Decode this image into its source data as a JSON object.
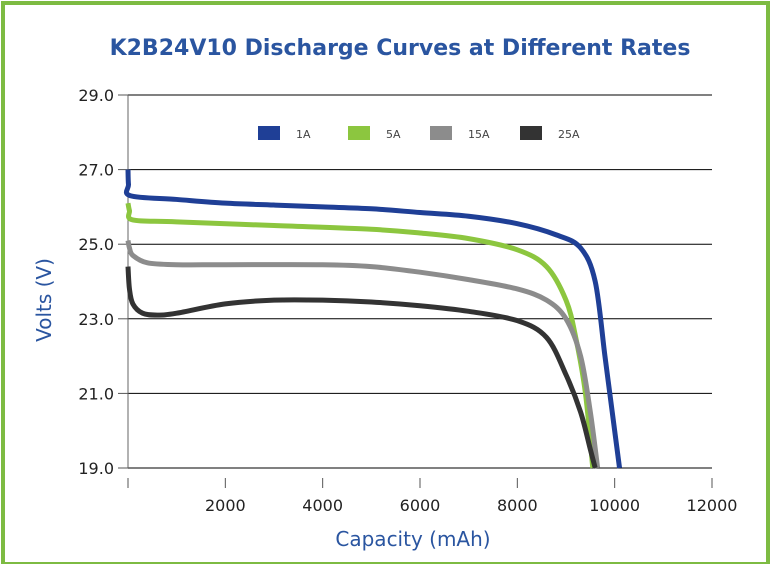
{
  "chart_data": {
    "type": "line",
    "title": "K2B24V10 Discharge Curves at Different Rates",
    "xlabel": "Capacity (mAh)",
    "ylabel": "Volts (V)",
    "xlim": [
      0,
      12000
    ],
    "ylim": [
      19,
      29
    ],
    "x_ticks": [
      "2000",
      "4000",
      "6000",
      "8000",
      "10000",
      "12000"
    ],
    "y_ticks": [
      "19.0",
      "21.0",
      "23.0",
      "25.0",
      "27.0",
      "29.0"
    ],
    "grid": true,
    "legend_position": "top",
    "series": [
      {
        "name": "1A",
        "color": "#1f3f96",
        "points": [
          [
            0,
            27.0
          ],
          [
            10,
            26.6
          ],
          [
            50,
            26.3
          ],
          [
            1000,
            26.2
          ],
          [
            2000,
            26.1
          ],
          [
            3000,
            26.05
          ],
          [
            4000,
            26.0
          ],
          [
            5000,
            25.95
          ],
          [
            6000,
            25.85
          ],
          [
            7000,
            25.75
          ],
          [
            8000,
            25.55
          ],
          [
            8800,
            25.25
          ],
          [
            9300,
            24.9
          ],
          [
            9600,
            24.0
          ],
          [
            9800,
            22.0
          ],
          [
            9950,
            20.5
          ],
          [
            10100,
            19.0
          ]
        ]
      },
      {
        "name": "5A",
        "color": "#8cc63f",
        "points": [
          [
            0,
            26.1
          ],
          [
            30,
            25.9
          ],
          [
            100,
            25.65
          ],
          [
            1000,
            25.6
          ],
          [
            3000,
            25.5
          ],
          [
            5000,
            25.4
          ],
          [
            6000,
            25.3
          ],
          [
            7000,
            25.15
          ],
          [
            8000,
            24.85
          ],
          [
            8600,
            24.4
          ],
          [
            9000,
            23.5
          ],
          [
            9200,
            22.5
          ],
          [
            9400,
            21.0
          ],
          [
            9550,
            19.0
          ]
        ]
      },
      {
        "name": "15A",
        "color": "#8c8c8c",
        "points": [
          [
            0,
            25.1
          ],
          [
            30,
            24.9
          ],
          [
            100,
            24.7
          ],
          [
            400,
            24.5
          ],
          [
            1000,
            24.45
          ],
          [
            2000,
            24.45
          ],
          [
            4000,
            24.45
          ],
          [
            5000,
            24.4
          ],
          [
            6000,
            24.25
          ],
          [
            7000,
            24.05
          ],
          [
            8000,
            23.8
          ],
          [
            8600,
            23.5
          ],
          [
            9000,
            23.0
          ],
          [
            9300,
            22.0
          ],
          [
            9500,
            20.5
          ],
          [
            9650,
            19.0
          ]
        ]
      },
      {
        "name": "25A",
        "color": "#333333",
        "points": [
          [
            0,
            24.4
          ],
          [
            30,
            23.8
          ],
          [
            100,
            23.4
          ],
          [
            300,
            23.15
          ],
          [
            600,
            23.1
          ],
          [
            1000,
            23.15
          ],
          [
            2000,
            23.4
          ],
          [
            3000,
            23.5
          ],
          [
            4000,
            23.5
          ],
          [
            5000,
            23.45
          ],
          [
            6000,
            23.35
          ],
          [
            7000,
            23.2
          ],
          [
            8000,
            22.95
          ],
          [
            8600,
            22.5
          ],
          [
            9000,
            21.5
          ],
          [
            9300,
            20.5
          ],
          [
            9500,
            19.5
          ],
          [
            9600,
            19.0
          ]
        ]
      }
    ]
  }
}
